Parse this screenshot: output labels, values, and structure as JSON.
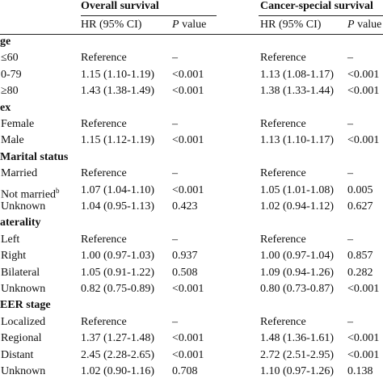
{
  "header": {
    "overall": "Overall survival",
    "cancer": "Cancer-special survival",
    "hr": "HR (95% CI)",
    "p": "P",
    "value": "value"
  },
  "rows": [
    {
      "label": "ge",
      "section": true
    },
    {
      "label": "≤60",
      "values": [
        "Reference",
        "–",
        "Reference",
        "–"
      ]
    },
    {
      "label": "0-79",
      "values": [
        "1.15 (1.10-1.19)",
        "<0.001",
        "1.13 (1.08-1.17)",
        "<0.001"
      ]
    },
    {
      "label": "≥80",
      "values": [
        "1.43 (1.38-1.49)",
        "<0.001",
        "1.38 (1.33-1.44)",
        "<0.001"
      ]
    },
    {
      "label": "ex",
      "section": true
    },
    {
      "label": "Female",
      "values": [
        "Reference",
        "–",
        "Reference",
        "–"
      ]
    },
    {
      "label": "Male",
      "values": [
        "1.15 (1.12-1.19)",
        "<0.001",
        "1.13 (1.10-1.17)",
        "<0.001"
      ]
    },
    {
      "label": "Marital status",
      "section": true
    },
    {
      "label": "Married",
      "values": [
        "Reference",
        "–",
        "Reference",
        "–"
      ]
    },
    {
      "label": "Not married",
      "sup": "b",
      "values": [
        "1.07 (1.04-1.10)",
        "<0.001",
        "1.05 (1.01-1.08)",
        "0.005"
      ]
    },
    {
      "label": "Unknown",
      "values": [
        "1.04 (0.95-1.13)",
        "0.423",
        "1.02 (0.94-1.12)",
        "0.627"
      ]
    },
    {
      "label": "aterality",
      "section": true
    },
    {
      "label": "Left",
      "values": [
        "Reference",
        "–",
        "Reference",
        "–"
      ]
    },
    {
      "label": "Right",
      "values": [
        "1.00 (0.97-1.03)",
        "0.937",
        "1.00 (0.97-1.04)",
        "0.857"
      ]
    },
    {
      "label": "Bilateral",
      "values": [
        "1.05 (0.91-1.22)",
        "0.508",
        "1.09 (0.94-1.26)",
        "0.282"
      ]
    },
    {
      "label": "Unknown",
      "values": [
        "0.82 (0.75-0.89)",
        "<0.001",
        "0.80 (0.73-0.87)",
        "<0.001"
      ]
    },
    {
      "label": "EER stage",
      "section": true
    },
    {
      "label": "Localized",
      "values": [
        "Reference",
        "–",
        "Reference",
        "–"
      ]
    },
    {
      "label": "Regional",
      "values": [
        "1.37 (1.27-1.48)",
        "<0.001",
        "1.48 (1.36-1.61)",
        "<0.001"
      ]
    },
    {
      "label": "Distant",
      "values": [
        "2.45 (2.28-2.65)",
        "<0.001",
        "2.72 (2.51-2.95)",
        "<0.001"
      ]
    },
    {
      "label": "Unknown",
      "values": [
        "1.02 (0.90-1.16)",
        "0.708",
        "1.10 (0.97-1.26)",
        "0.138"
      ]
    }
  ]
}
